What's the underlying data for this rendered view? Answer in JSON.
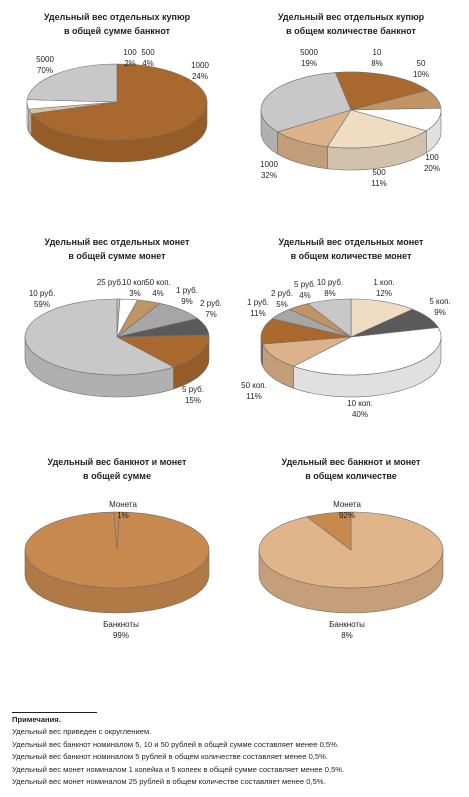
{
  "chart_data": [
    {
      "type": "pie",
      "title": "Удельный вес отдельных купюр\nв общей сумме банкнот",
      "slices": [
        {
          "label": "5000",
          "pct": "70%",
          "value": 70,
          "color": "#a9692e"
        },
        {
          "label": "100",
          "pct": "2%",
          "value": 2,
          "color": "#d9c09f"
        },
        {
          "label": "500",
          "pct": "4%",
          "value": 4,
          "color": "#ffffff"
        },
        {
          "label": "1000",
          "pct": "24%",
          "value": 24,
          "color": "#c8c8c8"
        }
      ]
    },
    {
      "type": "pie",
      "title": "Удельный вес отдельных купюр\nв общем количестве банкнот",
      "slices": [
        {
          "label": "5000",
          "pct": "19%",
          "value": 19,
          "color": "#a9692e"
        },
        {
          "label": "10",
          "pct": "8%",
          "value": 8,
          "color": "#c09465"
        },
        {
          "label": "50",
          "pct": "10%",
          "value": 10,
          "color": "#ffffff"
        },
        {
          "label": "100",
          "pct": "20%",
          "value": 20,
          "color": "#efdcc3"
        },
        {
          "label": "500",
          "pct": "11%",
          "value": 11,
          "color": "#dcb28a"
        },
        {
          "label": "1000",
          "pct": "32%",
          "value": 32,
          "color": "#c8c8c8"
        }
      ]
    },
    {
      "type": "pie",
      "title": "Удельный вес отдельных монет\nв общей сумме монет",
      "slices": [
        {
          "label": "25 руб.",
          "pct": "",
          "value": 0.5,
          "color": "#d9c09f"
        },
        {
          "label": "10 коп.",
          "pct": "3%",
          "value": 3,
          "color": "#ffffff"
        },
        {
          "label": "50 коп.",
          "pct": "4%",
          "value": 4,
          "color": "#c09465"
        },
        {
          "label": "1 руб.",
          "pct": "9%",
          "value": 9,
          "color": "#a6a6a6"
        },
        {
          "label": "2 руб.",
          "pct": "7%",
          "value": 7,
          "color": "#5a5a5a"
        },
        {
          "label": "5 руб.",
          "pct": "15%",
          "value": 15,
          "color": "#a9692e"
        },
        {
          "label": "10 руб.",
          "pct": "59%",
          "value": 59,
          "color": "#c8c8c8"
        }
      ]
    },
    {
      "type": "pie",
      "title": "Удельный вес отдельных монет\nв общем количестве монет",
      "slices": [
        {
          "label": "1 коп.",
          "pct": "12%",
          "value": 12,
          "color": "#efdcc3"
        },
        {
          "label": "5 коп.",
          "pct": "9%",
          "value": 9,
          "color": "#5a5a5a"
        },
        {
          "label": "10 коп.",
          "pct": "40%",
          "value": 40,
          "color": "#ffffff"
        },
        {
          "label": "50 коп.",
          "pct": "11%",
          "value": 11,
          "color": "#dcb28a"
        },
        {
          "label": "1 руб.",
          "pct": "11%",
          "value": 11,
          "color": "#a9692e"
        },
        {
          "label": "2 руб.",
          "pct": "5%",
          "value": 5,
          "color": "#a6a6a6"
        },
        {
          "label": "5 руб.",
          "pct": "4%",
          "value": 4,
          "color": "#c09465"
        },
        {
          "label": "10 руб.",
          "pct": "8%",
          "value": 8,
          "color": "#c8c8c8"
        }
      ]
    },
    {
      "type": "pie",
      "title": "Удельный вес банкнот и монет\nв общей сумме",
      "slices": [
        {
          "label": "Монета",
          "pct": "1%",
          "value": 1,
          "color": "#c8894f"
        },
        {
          "label": "Банкноты",
          "pct": "99%",
          "value": 99,
          "color": "#c8894f"
        }
      ]
    },
    {
      "type": "pie",
      "title": "Удельный вес банкнот и монет\nв общем количестве",
      "slices": [
        {
          "label": "Монета",
          "pct": "92%",
          "value": 92,
          "color": "#e0b58a"
        },
        {
          "label": "Банкноты",
          "pct": "8%",
          "value": 8,
          "color": "#c8894f"
        }
      ]
    }
  ],
  "notes": {
    "heading": "Примечания.",
    "lines": [
      "Удельный вес приведен с округлением.",
      "Удельный вес банкнот номиналом 5, 10 и 50 рублей в общей сумме составляет менее 0,5%.",
      "Удельный вес банкнот номиналом 5 рублей в общем количестве составляет менее 0,5%.",
      "Удельный вес монет номиналом 1 копейка и 5 копеек в общей сумме составляет менее 0,5%.",
      "Удельный вес монет номиналом 25 рублей в общем количестве составляет менее 0,5%."
    ]
  }
}
